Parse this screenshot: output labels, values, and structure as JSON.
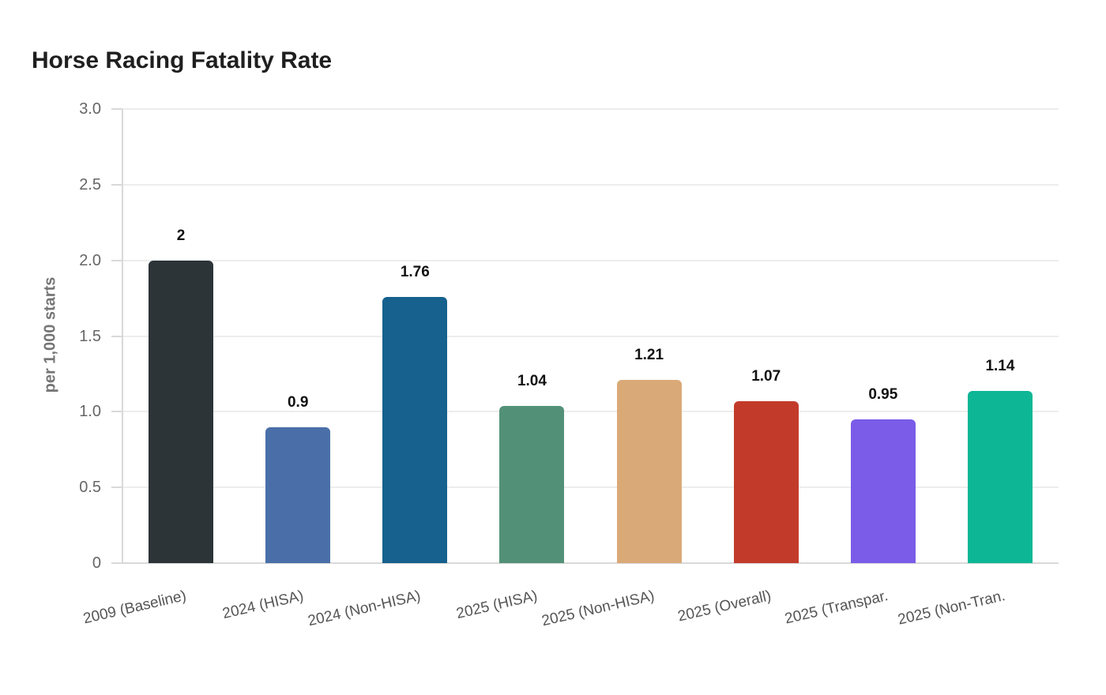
{
  "page": {
    "title": "Horse Racing Fatality Rate"
  },
  "chart_data": {
    "type": "bar",
    "title": "Horse Racing Fatality Rate",
    "xlabel": "",
    "ylabel": "per 1,000 starts",
    "ylim": [
      0,
      3.0
    ],
    "ytick_step": 0.5,
    "ytick_labels": [
      "3.0",
      "2.5",
      "2.0",
      "1.5",
      "1.0",
      "0.5",
      "0"
    ],
    "grid": true,
    "legend_position": "none",
    "categories": [
      "2009 (Baseline)",
      "2024 (HISA)",
      "2024 (Non-HISA)",
      "2025 (HISA)",
      "2025 (Non-HISA)",
      "2025 (Overall)",
      "2025 (Transpar.",
      "2025 (Non-Tran."
    ],
    "values": [
      2,
      0.9,
      1.76,
      1.04,
      1.21,
      1.07,
      0.95,
      1.14
    ],
    "value_labels": [
      "2",
      "0.9",
      "1.76",
      "1.04",
      "1.21",
      "1.07",
      "0.95",
      "1.14"
    ],
    "bar_colors": [
      "#2c3438",
      "#4a6fa8",
      "#16618e",
      "#529178",
      "#d9aa78",
      "#c23b2a",
      "#7a5ce8",
      "#0db795"
    ],
    "colors": {
      "grid": "#ededed",
      "axis": "#d9d9d9",
      "tick_label": "#666666",
      "x_label": "#555555",
      "value_label": "#111111",
      "title": "#1f1f1f",
      "ylabel": "#757575",
      "background": "#ffffff"
    }
  }
}
